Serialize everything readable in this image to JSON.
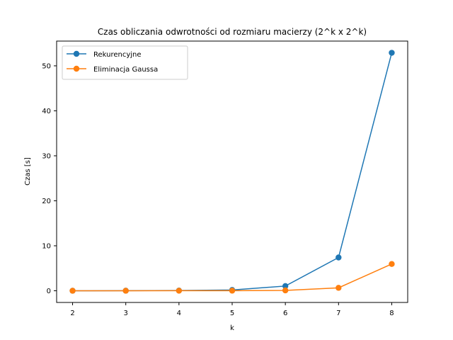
{
  "chart_data": {
    "type": "line",
    "title": "Czas obliczania odwrotności od rozmiaru macierzy (2^k x 2^k)",
    "xlabel": "k",
    "ylabel": "Czas [s]",
    "x": [
      2,
      3,
      4,
      5,
      6,
      7,
      8
    ],
    "xticks": [
      "2",
      "3",
      "4",
      "5",
      "6",
      "7",
      "8"
    ],
    "yticks": [
      "0",
      "10",
      "20",
      "30",
      "40",
      "50"
    ],
    "xlim": [
      1.7,
      8.3
    ],
    "ylim": [
      -2.6,
      55.5
    ],
    "grid": false,
    "legend_position": "top-left",
    "series": [
      {
        "name": "Rekurencyjne",
        "color": "#1f77b4",
        "marker": "circle",
        "values": [
          0.0,
          0.02,
          0.05,
          0.18,
          1.05,
          7.4,
          52.9
        ]
      },
      {
        "name": "Eliminacja Gaussa",
        "color": "#ff7f0e",
        "marker": "circle",
        "values": [
          0.0,
          0.0,
          0.01,
          0.02,
          0.08,
          0.65,
          5.95
        ]
      }
    ]
  }
}
